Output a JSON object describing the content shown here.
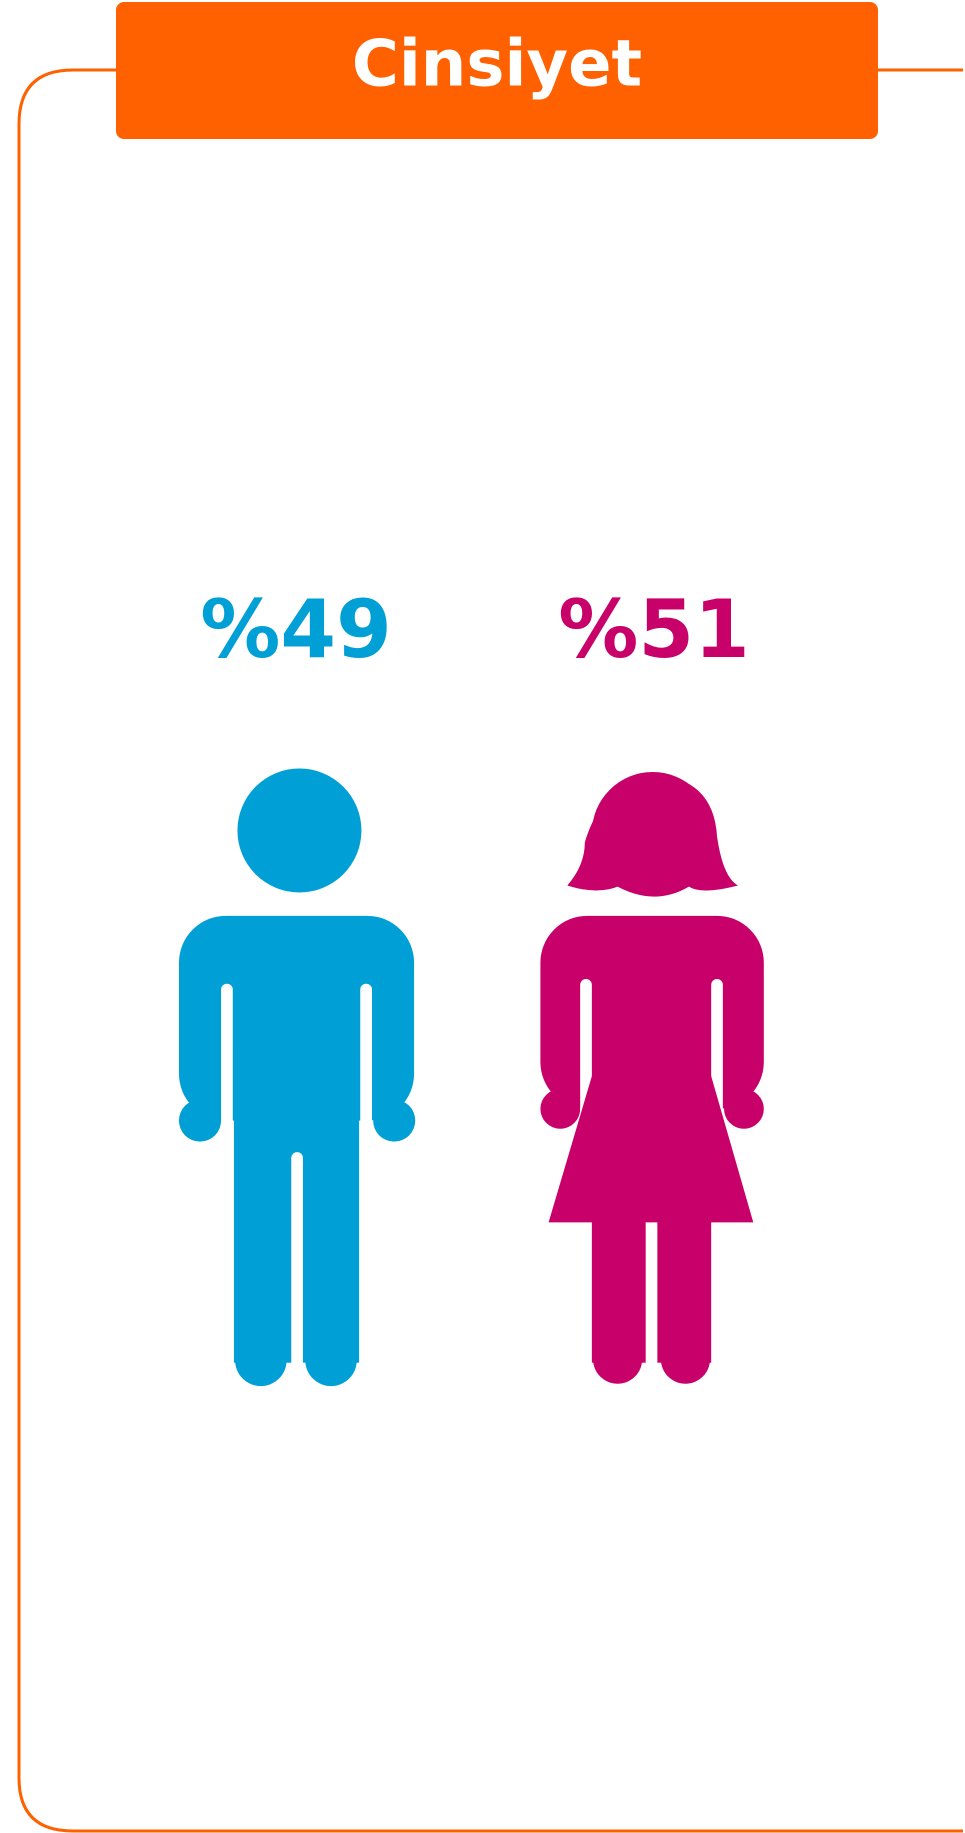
{
  "title": "Cinsiyet",
  "items": [
    {
      "label": "%49",
      "color": "#009fd6"
    },
    {
      "label": "%51",
      "color": "#c8006a"
    }
  ]
}
